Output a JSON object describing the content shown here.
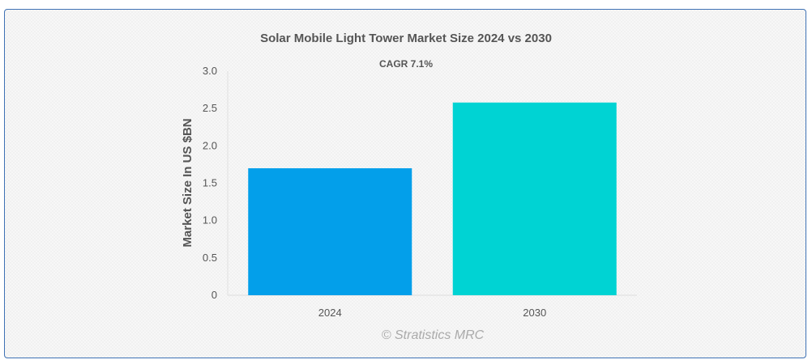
{
  "chart_data": {
    "type": "bar",
    "title": "Solar Mobile Light Tower Market Size 2024 vs 2030",
    "subtitle": "CAGR 7.1%",
    "categories": [
      "2024",
      "2030"
    ],
    "values": [
      1.7,
      2.58
    ],
    "colors": [
      "#039fea",
      "#00d3d3"
    ],
    "xlabel": "",
    "ylabel": "Market Size In US $BN",
    "ylim": [
      0,
      3.0
    ],
    "yticks": [
      "0",
      "0.5",
      "1.0",
      "1.5",
      "2.0",
      "2.5",
      "3.0"
    ],
    "ytick_values": [
      0,
      0.5,
      1.0,
      1.5,
      2.0,
      2.5,
      3.0
    ],
    "grid": false,
    "legend": "none"
  },
  "credit": "© Stratistics MRC"
}
